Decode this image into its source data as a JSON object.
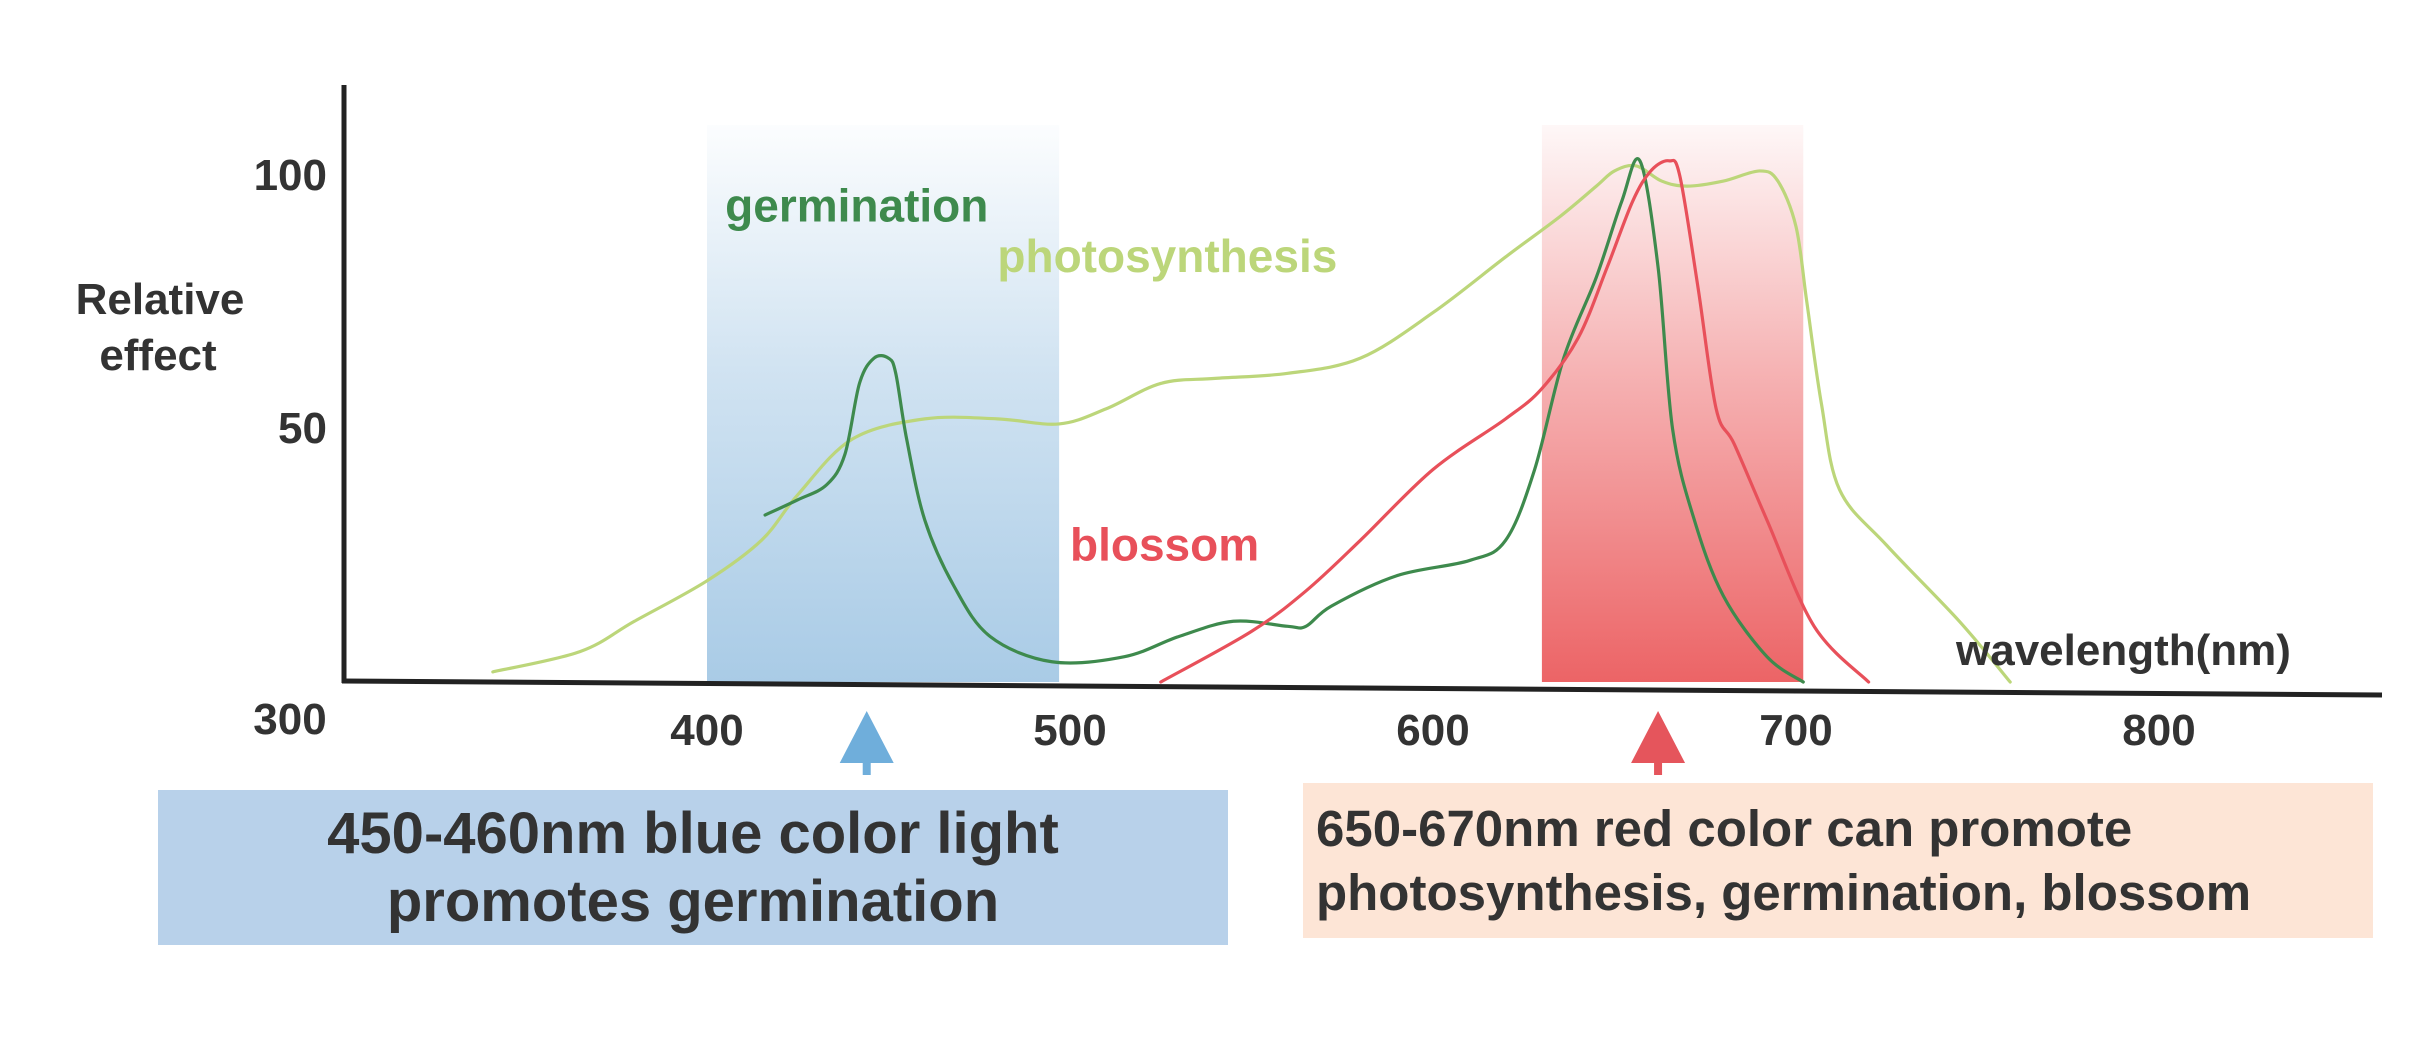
{
  "chart_data": {
    "type": "line",
    "x_ticks": [
      "300",
      "400",
      "500",
      "600",
      "700",
      "800"
    ],
    "y_ticks": [
      "50",
      "100"
    ],
    "xlabel": "wavelength(nm)",
    "ylabel_lines": [
      "Relative",
      "effect"
    ],
    "xlim": [
      300,
      870
    ],
    "ylim": [
      0,
      110
    ],
    "bands": [
      {
        "name": "blue",
        "from": 400,
        "to": 497,
        "color": "#a9cbe6"
      },
      {
        "name": "red",
        "from": 630,
        "to": 702,
        "color": "#ec6466"
      }
    ],
    "markers": [
      {
        "x": 444,
        "color": "#6faedb"
      },
      {
        "x": 662,
        "color": "#e5555c"
      }
    ],
    "series": [
      {
        "name": "photosynthesis",
        "color": "#bcd67a",
        "label_at": [
          480,
          81
        ],
        "x": [
          341,
          365,
          380,
          400,
          415,
          425,
          440,
          460,
          480,
          497,
          510,
          525,
          540,
          560,
          580,
          600,
          620,
          635,
          645,
          650,
          656,
          663,
          670,
          680,
          690,
          695,
          700,
          703,
          707,
          712,
          725,
          745,
          759
        ],
        "y": [
          2,
          6,
          12,
          20,
          28,
          37,
          48,
          52,
          52,
          51,
          54,
          59,
          60,
          61,
          64,
          73,
          84,
          92,
          98,
          101,
          102,
          99,
          98,
          99,
          101,
          99,
          90,
          75,
          55,
          38,
          27,
          12,
          0
        ]
      },
      {
        "name": "germination",
        "color": "#3e8a4d",
        "label_at": [
          405,
          91
        ],
        "x": [
          416,
          425,
          433,
          438,
          442,
          446,
          450,
          452,
          455,
          460,
          468,
          478,
          495,
          515,
          530,
          545,
          560,
          565,
          572,
          590,
          610,
          620,
          628,
          636,
          645,
          652,
          657,
          662,
          666,
          672,
          680,
          692,
          702
        ],
        "y": [
          33,
          36,
          39,
          45,
          59,
          64,
          64,
          61,
          48,
          32,
          19,
          9,
          4,
          5,
          9,
          12,
          11,
          11,
          15,
          21,
          24,
          28,
          42,
          64,
          80,
          95,
          103,
          82,
          50,
          32,
          17,
          5,
          0
        ]
      },
      {
        "name": "blossom",
        "color": "#e8505a",
        "label_at": [
          500,
          24
        ],
        "x": [
          525,
          550,
          565,
          580,
          600,
          620,
          630,
          640,
          648,
          655,
          660,
          665,
          668,
          673,
          678,
          683,
          692,
          705,
          720
        ],
        "y": [
          0,
          10,
          18,
          28,
          42,
          52,
          58,
          68,
          82,
          95,
          101,
          103,
          100,
          78,
          54,
          47,
          32,
          11,
          0
        ]
      }
    ]
  },
  "callouts": {
    "blue": {
      "lines": [
        "450-460nm blue color light",
        "promotes germination"
      ],
      "bg": "#b8d1ea"
    },
    "red": {
      "lines": [
        "650-670nm red color can promote",
        "photosynthesis, germination, blossom"
      ],
      "bg": "#fde5d6"
    }
  }
}
